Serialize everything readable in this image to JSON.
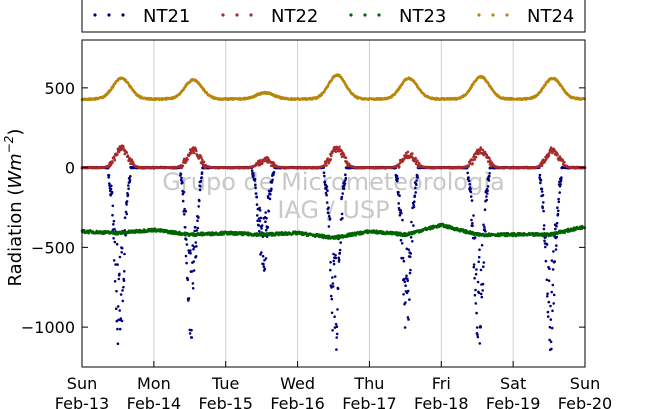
{
  "chart_data": {
    "type": "scatter",
    "title": "",
    "ylabel": "Radiation (Wm^-2)",
    "ylabel_parts": {
      "text": "Radiation (",
      "base": "Wm",
      "exp": "−2",
      "close": ")"
    },
    "ylim": [
      -1250,
      800
    ],
    "xlim_days": [
      0,
      7
    ],
    "y_ticks": [
      {
        "value": 500,
        "label": "500"
      },
      {
        "value": 0,
        "label": "0"
      },
      {
        "value": -500,
        "label": "−500"
      },
      {
        "value": -1000,
        "label": "−1000"
      }
    ],
    "x_ticks": [
      {
        "day": 0,
        "line1": "Sun",
        "line2": "Feb-13"
      },
      {
        "day": 1,
        "line1": "Mon",
        "line2": "Feb-14"
      },
      {
        "day": 2,
        "line1": "Tue",
        "line2": "Feb-15"
      },
      {
        "day": 3,
        "line1": "Wed",
        "line2": "Feb-16"
      },
      {
        "day": 4,
        "line1": "Thu",
        "line2": "Feb-17"
      },
      {
        "day": 5,
        "line1": "Fri",
        "line2": "Feb-18"
      },
      {
        "day": 6,
        "line1": "Sat",
        "line2": "Feb-19"
      },
      {
        "day": 7,
        "line1": "Sun",
        "line2": "Feb-20"
      }
    ],
    "grid": "vertical",
    "legend_position": "top",
    "watermark": [
      "Grupo de Micrometeorologia",
      "IAG / USP"
    ],
    "series": [
      {
        "name": "NT21",
        "color": "#00007f",
        "baseline": 0,
        "daily_peak": [
          -1180,
          -1100,
          -700,
          -1220,
          -1090,
          -1150,
          -1200
        ]
      },
      {
        "name": "NT22",
        "color": "#a52a2a",
        "baseline": 0,
        "daily_peak": [
          120,
          110,
          50,
          120,
          80,
          110,
          110
        ]
      },
      {
        "name": "NT23",
        "color": "#006400",
        "x_days": [
          0,
          0.5,
          1,
          1.5,
          2,
          2.5,
          3,
          3.5,
          4,
          4.5,
          5,
          5.5,
          6,
          6.5,
          7
        ],
        "values": [
          -400,
          -410,
          -390,
          -420,
          -410,
          -420,
          -410,
          -440,
          -400,
          -420,
          -360,
          -420,
          -420,
          -420,
          -370
        ]
      },
      {
        "name": "NT24",
        "color": "#b8860b",
        "baseline": 430,
        "daily_peak": [
          560,
          550,
          470,
          580,
          560,
          570,
          560
        ]
      }
    ]
  }
}
